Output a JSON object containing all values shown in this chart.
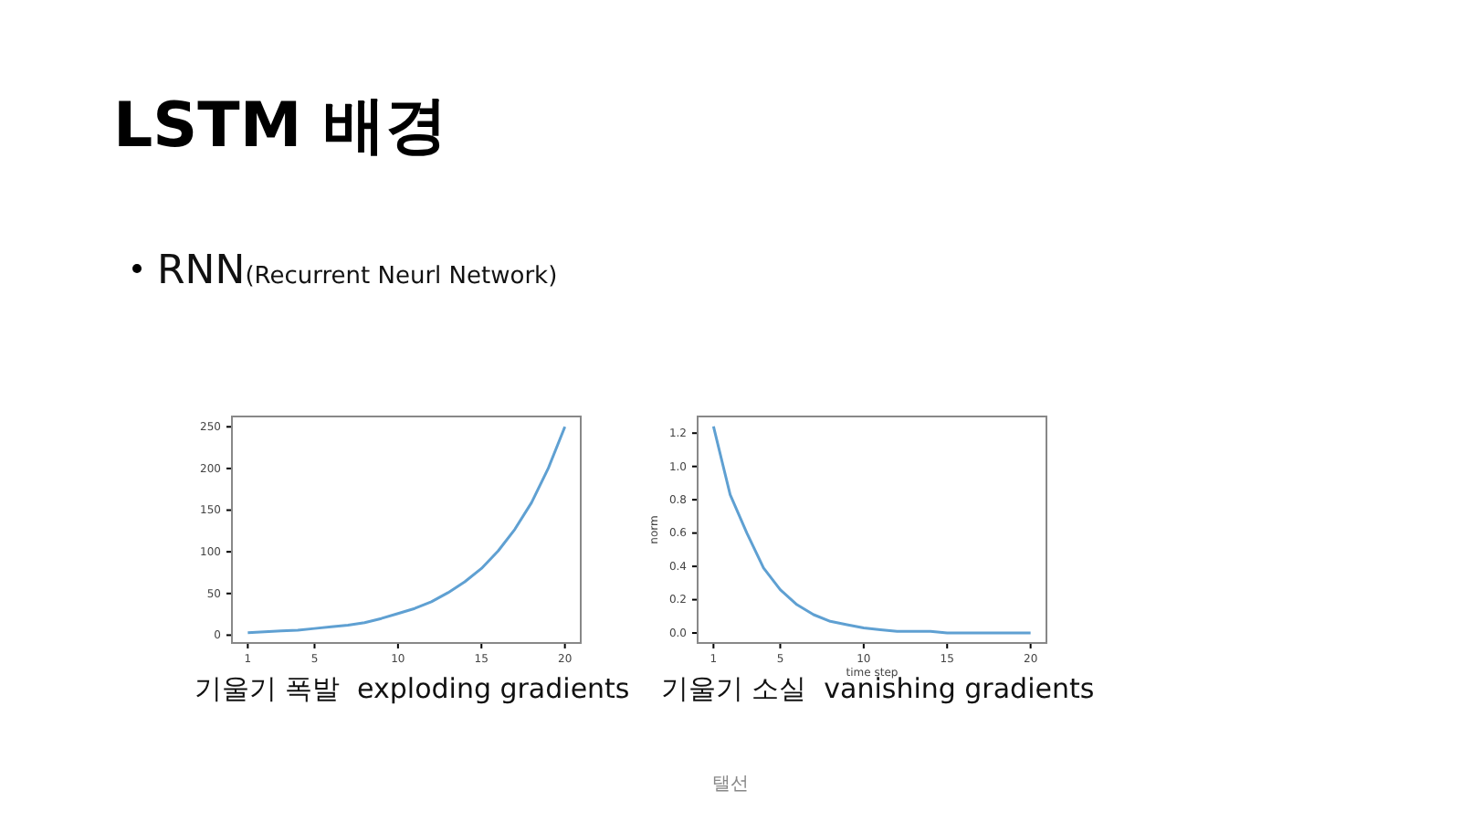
{
  "chart_data": [
    {
      "type": "line",
      "title": "LSTM 배경",
      "subtitle": "RNN(Recurrent Neurl Network)",
      "annotations": [
        "기울기 폭발  exploding gradients"
      ],
      "color": "#5fa0d2",
      "x": [
        1,
        2,
        3,
        4,
        5,
        6,
        7,
        8,
        9,
        10,
        11,
        12,
        13,
        14,
        15,
        16,
        17,
        18,
        19,
        20
      ],
      "values": [
        3,
        4,
        5,
        6,
        8,
        10,
        12,
        15,
        20,
        26,
        32,
        40,
        51,
        64,
        80,
        101,
        127,
        159,
        200,
        250
      ],
      "xlim": [
        0.05,
        20.95
      ],
      "ylim": [
        -9.4,
        262.4
      ],
      "xticks": [
        1,
        5,
        10,
        15,
        20
      ],
      "yticks": [
        0,
        50,
        100,
        150,
        200,
        250
      ]
    },
    {
      "type": "line",
      "xlabel": "time step",
      "ylabel": "norm",
      "annotations": [
        "기울기 소실  vanishing gradients",
        "탤선"
      ],
      "color": "#5fa0d2",
      "x": [
        1,
        2,
        3,
        4,
        5,
        6,
        7,
        8,
        9,
        10,
        11,
        12,
        13,
        14,
        15,
        16,
        17,
        18,
        19,
        20
      ],
      "values": [
        1.24,
        0.83,
        0.6,
        0.39,
        0.26,
        0.17,
        0.11,
        0.07,
        0.05,
        0.03,
        0.02,
        0.01,
        0.01,
        0.01,
        0,
        0,
        0,
        0,
        0,
        0
      ],
      "xlim": [
        0.05,
        20.95
      ],
      "ylim": [
        -0.06,
        1.3
      ],
      "xticks": [
        1,
        5,
        10,
        15,
        20
      ],
      "yticks": [
        {
          "value": 0,
          "label": "0.0"
        },
        {
          "value": 0.2,
          "label": "0.2"
        },
        {
          "value": 0.4,
          "label": "0.4"
        },
        {
          "value": 0.6,
          "label": "0.6"
        },
        {
          "value": 0.8,
          "label": "0.8"
        },
        {
          "value": 1,
          "label": "1.0"
        },
        {
          "value": 1.2,
          "label": "1.2"
        }
      ]
    }
  ]
}
